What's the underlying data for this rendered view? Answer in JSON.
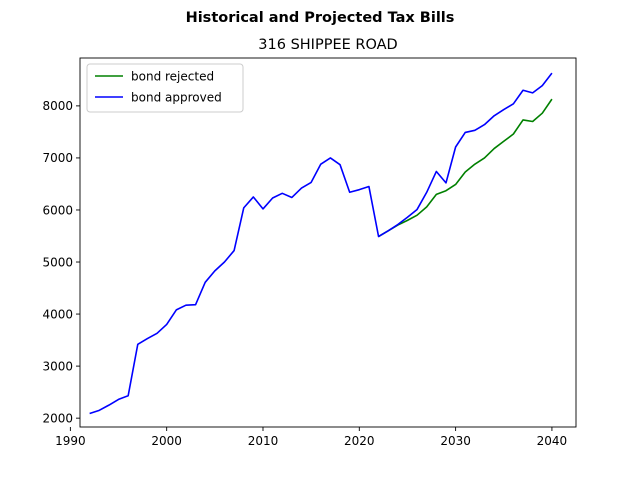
{
  "figure": {
    "suptitle": "Historical and Projected Tax Bills"
  },
  "chart_data": {
    "type": "line",
    "title": "316 SHIPPEE ROAD",
    "xlabel": "",
    "ylabel": "",
    "xlim": [
      1991,
      2042.5
    ],
    "ylim": [
      1830,
      8920
    ],
    "x_ticks": [
      1990,
      2000,
      2010,
      2020,
      2030,
      2040
    ],
    "y_ticks": [
      2000,
      3000,
      4000,
      5000,
      6000,
      7000,
      8000
    ],
    "grid": false,
    "legend_position": "top-left",
    "series": [
      {
        "name": "bond rejected",
        "color": "#008000",
        "x": [
          2022,
          2023,
          2024,
          2025,
          2026,
          2027,
          2028,
          2029,
          2030,
          2031,
          2032,
          2033,
          2034,
          2035,
          2036,
          2037,
          2038,
          2039,
          2040
        ],
        "y": [
          5490,
          5600,
          5710,
          5800,
          5900,
          6060,
          6300,
          6370,
          6490,
          6730,
          6880,
          7000,
          7180,
          7320,
          7460,
          7730,
          7700,
          7860,
          8130
        ]
      },
      {
        "name": "bond approved",
        "color": "#0000ff",
        "x": [
          1992,
          1993,
          1994,
          1995,
          1996,
          1997,
          1998,
          1999,
          2000,
          2001,
          2002,
          2003,
          2004,
          2005,
          2006,
          2007,
          2008,
          2009,
          2010,
          2011,
          2012,
          2013,
          2014,
          2015,
          2016,
          2017,
          2018,
          2019,
          2020,
          2021,
          2022,
          2023,
          2024,
          2025,
          2026,
          2027,
          2028,
          2029,
          2030,
          2031,
          2032,
          2033,
          2034,
          2035,
          2036,
          2037,
          2038,
          2039,
          2040
        ],
        "y": [
          2090,
          2150,
          2250,
          2360,
          2430,
          3420,
          3530,
          3630,
          3800,
          4080,
          4170,
          4180,
          4610,
          4830,
          5000,
          5220,
          6040,
          6250,
          6020,
          6230,
          6320,
          6240,
          6420,
          6530,
          6880,
          7000,
          6870,
          6340,
          6390,
          6450,
          5490,
          5600,
          5720,
          5860,
          6010,
          6340,
          6740,
          6520,
          7210,
          7490,
          7530,
          7640,
          7810,
          7930,
          8040,
          8300,
          8250,
          8390,
          8630
        ]
      }
    ]
  }
}
